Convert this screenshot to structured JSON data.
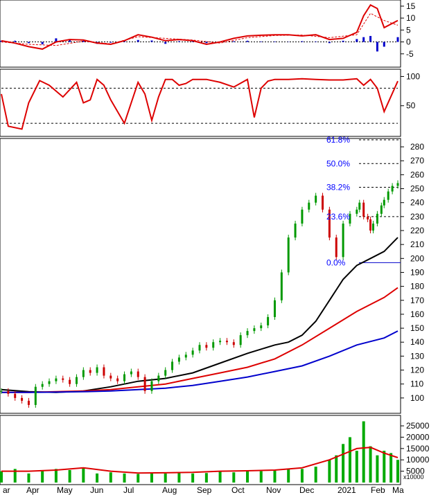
{
  "chart_data": [
    {
      "panel": "macd",
      "type": "line",
      "y_ticks": [
        "15",
        "10",
        "5",
        "0",
        "-5"
      ],
      "ylim": [
        -10,
        17
      ],
      "colors": {
        "line": "#dd0000",
        "histogram": "#0000cc"
      },
      "series": [
        {
          "kind": "line",
          "style": "solid",
          "x": [
            0,
            10,
            20,
            30,
            40,
            50,
            60,
            70,
            80,
            90,
            100,
            110,
            120,
            130,
            140,
            150,
            160,
            170,
            180,
            190,
            200,
            210,
            220,
            230,
            240,
            250,
            260,
            265,
            270,
            275,
            280,
            290
          ],
          "values": [
            0.5,
            -0.5,
            -2,
            -3,
            0,
            1,
            0.8,
            -0.5,
            -1,
            0.5,
            3,
            2,
            0.5,
            1,
            0.5,
            -1,
            0,
            1.5,
            2.5,
            2.8,
            3,
            3,
            2.5,
            3,
            1,
            1.5,
            4,
            11,
            15.5,
            14,
            6,
            9
          ]
        },
        {
          "kind": "line",
          "style": "dashed",
          "x": [
            0,
            20,
            40,
            60,
            80,
            100,
            120,
            140,
            160,
            180,
            200,
            220,
            240,
            260,
            270,
            280,
            290
          ],
          "values": [
            0,
            -1,
            -1.5,
            0.3,
            -0.8,
            2.2,
            1.5,
            0.8,
            -0.5,
            1.8,
            2.7,
            2.9,
            1.8,
            3,
            12,
            9,
            7
          ]
        },
        {
          "kind": "histogram",
          "x": [
            0,
            10,
            20,
            30,
            40,
            50,
            60,
            70,
            80,
            90,
            100,
            110,
            120,
            130,
            140,
            150,
            160,
            170,
            180,
            190,
            200,
            210,
            220,
            230,
            240,
            250,
            260,
            265,
            270,
            275,
            280,
            290
          ],
          "values": [
            0.5,
            0.5,
            -0.5,
            -1,
            1.5,
            1.2,
            0.5,
            -0.8,
            -0.3,
            0.4,
            0.8,
            0.6,
            -0.8,
            0.3,
            0.3,
            -0.5,
            0.2,
            0.3,
            0.5,
            0.2,
            0.2,
            0.1,
            0.3,
            0.2,
            -0.5,
            0.5,
            1.2,
            2,
            2.5,
            -4,
            -2,
            2
          ]
        }
      ]
    },
    {
      "panel": "stochastic",
      "type": "line",
      "y_ticks": [
        "100",
        "50"
      ],
      "ylim": [
        0,
        110
      ],
      "reference_lines": [
        80,
        20
      ],
      "colors": {
        "line": "#dd0000",
        "reference": "#000000"
      },
      "series": [
        {
          "kind": "line",
          "style": "solid",
          "x": [
            0,
            5,
            15,
            20,
            28,
            35,
            45,
            55,
            60,
            65,
            70,
            75,
            80,
            90,
            100,
            105,
            110,
            115,
            120,
            125,
            130,
            135,
            140,
            150,
            160,
            170,
            180,
            185,
            190,
            195,
            200,
            210,
            220,
            230,
            240,
            250,
            260,
            265,
            270,
            275,
            280,
            290
          ],
          "values": [
            70,
            15,
            10,
            55,
            93,
            85,
            65,
            90,
            55,
            60,
            95,
            85,
            60,
            20,
            90,
            70,
            25,
            65,
            95,
            95,
            85,
            88,
            95,
            95,
            90,
            82,
            95,
            30,
            80,
            92,
            95,
            95,
            96,
            95,
            94,
            94,
            96,
            85,
            95,
            80,
            40,
            92
          ]
        }
      ]
    },
    {
      "panel": "price",
      "type": "line",
      "title": "",
      "x_ticks": [
        "ar",
        "Apr",
        "May",
        "Jun",
        "Jul",
        "Aug",
        "Sep",
        "Oct",
        "Nov",
        "Dec",
        "2021",
        "Feb",
        "Ma"
      ],
      "y_ticks": [
        "280",
        "270",
        "260",
        "250",
        "240",
        "230",
        "220",
        "210",
        "200",
        "190",
        "180",
        "170",
        "160",
        "150",
        "140",
        "130",
        "120",
        "110",
        "100"
      ],
      "ylim": [
        90,
        285
      ],
      "fibonacci": [
        {
          "label": "61.8%",
          "value": 285
        },
        {
          "label": "50.0%",
          "value": 268
        },
        {
          "label": "38.2%",
          "value": 251
        },
        {
          "label": "23.6%",
          "value": 230
        },
        {
          "label": "0.0%",
          "value": 197
        }
      ],
      "colors": {
        "up": "#009900",
        "down": "#cc0000",
        "ma_black": "#000000",
        "ma_red": "#dd0000",
        "ma_blue": "#0000cc",
        "fib": "#0000ff"
      },
      "series": [
        {
          "name": "",
          "kind": "price",
          "x": [
            0,
            5,
            10,
            15,
            20,
            25,
            30,
            35,
            40,
            45,
            50,
            55,
            60,
            65,
            70,
            75,
            80,
            85,
            90,
            95,
            100,
            105,
            110,
            115,
            120,
            125,
            130,
            135,
            140,
            145,
            150,
            155,
            160,
            165,
            170,
            175,
            180,
            185,
            190,
            195,
            200,
            205,
            210,
            215,
            220,
            225,
            230,
            235,
            240,
            245,
            250,
            255,
            260,
            262,
            265,
            268,
            270,
            272,
            275,
            278,
            280,
            283,
            286,
            290
          ],
          "values": [
            105,
            103,
            100,
            98,
            95,
            108,
            110,
            112,
            114,
            113,
            110,
            115,
            120,
            118,
            122,
            116,
            114,
            112,
            117,
            119,
            115,
            105,
            112,
            116,
            120,
            126,
            129,
            131,
            134,
            138,
            136,
            140,
            141,
            140,
            138,
            145,
            148,
            150,
            152,
            158,
            170,
            190,
            215,
            225,
            235,
            240,
            245,
            235,
            215,
            201,
            225,
            232,
            235,
            240,
            230,
            228,
            220,
            225,
            232,
            238,
            242,
            248,
            252,
            254
          ]
        },
        {
          "name": "",
          "kind": "ma",
          "x": [
            0,
            20,
            40,
            60,
            80,
            100,
            120,
            140,
            160,
            180,
            200,
            210,
            220,
            230,
            240,
            250,
            260,
            270,
            280,
            290
          ],
          "values": [
            106,
            104.5,
            104,
            105,
            108,
            112,
            114,
            118,
            125,
            132,
            138,
            140,
            145,
            155,
            170,
            185,
            195,
            200,
            205,
            215
          ]
        },
        {
          "name": "",
          "kind": "ma",
          "x": [
            0,
            20,
            40,
            60,
            80,
            100,
            120,
            140,
            160,
            180,
            200,
            220,
            240,
            260,
            280,
            290
          ],
          "values": [
            104,
            104,
            104.5,
            105,
            106,
            108,
            110,
            114,
            118,
            122,
            128,
            138,
            150,
            162,
            172,
            179
          ]
        },
        {
          "name": "",
          "kind": "ma",
          "x": [
            0,
            20,
            40,
            60,
            80,
            100,
            120,
            140,
            160,
            180,
            200,
            220,
            240,
            260,
            280,
            290
          ],
          "values": [
            104,
            104,
            104.2,
            104.5,
            105,
            106,
            107,
            109,
            112,
            115,
            119,
            123,
            130,
            138,
            143,
            148
          ]
        }
      ]
    },
    {
      "panel": "volume",
      "type": "bar",
      "unit_label": "x10000",
      "y_ticks": [
        "25000",
        "20000",
        "15000",
        "10000",
        "5000"
      ],
      "ylim": [
        0,
        29000
      ],
      "colors": {
        "bar": "#00aa00",
        "ma": "#dd0000"
      },
      "series": [
        {
          "kind": "bar",
          "x": [
            0,
            10,
            20,
            30,
            40,
            50,
            60,
            70,
            80,
            90,
            100,
            110,
            120,
            130,
            140,
            150,
            160,
            170,
            180,
            190,
            200,
            210,
            220,
            230,
            240,
            245,
            250,
            255,
            260,
            265,
            270,
            275,
            280,
            285,
            290
          ],
          "values": [
            5000,
            6000,
            4000,
            5000,
            6000,
            5500,
            6500,
            4000,
            4500,
            4000,
            3800,
            4200,
            4000,
            4500,
            4000,
            4200,
            4800,
            4500,
            5200,
            5000,
            5200,
            5800,
            6000,
            7000,
            10000,
            12000,
            17000,
            20000,
            14000,
            27000,
            16000,
            12000,
            14000,
            13000,
            10000
          ]
        },
        {
          "kind": "ma",
          "x": [
            0,
            20,
            40,
            60,
            80,
            100,
            120,
            140,
            160,
            180,
            200,
            220,
            240,
            260,
            270,
            280,
            290
          ],
          "values": [
            5000,
            5000,
            5500,
            6500,
            5000,
            4200,
            4300,
            4500,
            5000,
            5200,
            5500,
            6500,
            10000,
            15000,
            15500,
            13000,
            11000
          ]
        }
      ]
    }
  ]
}
